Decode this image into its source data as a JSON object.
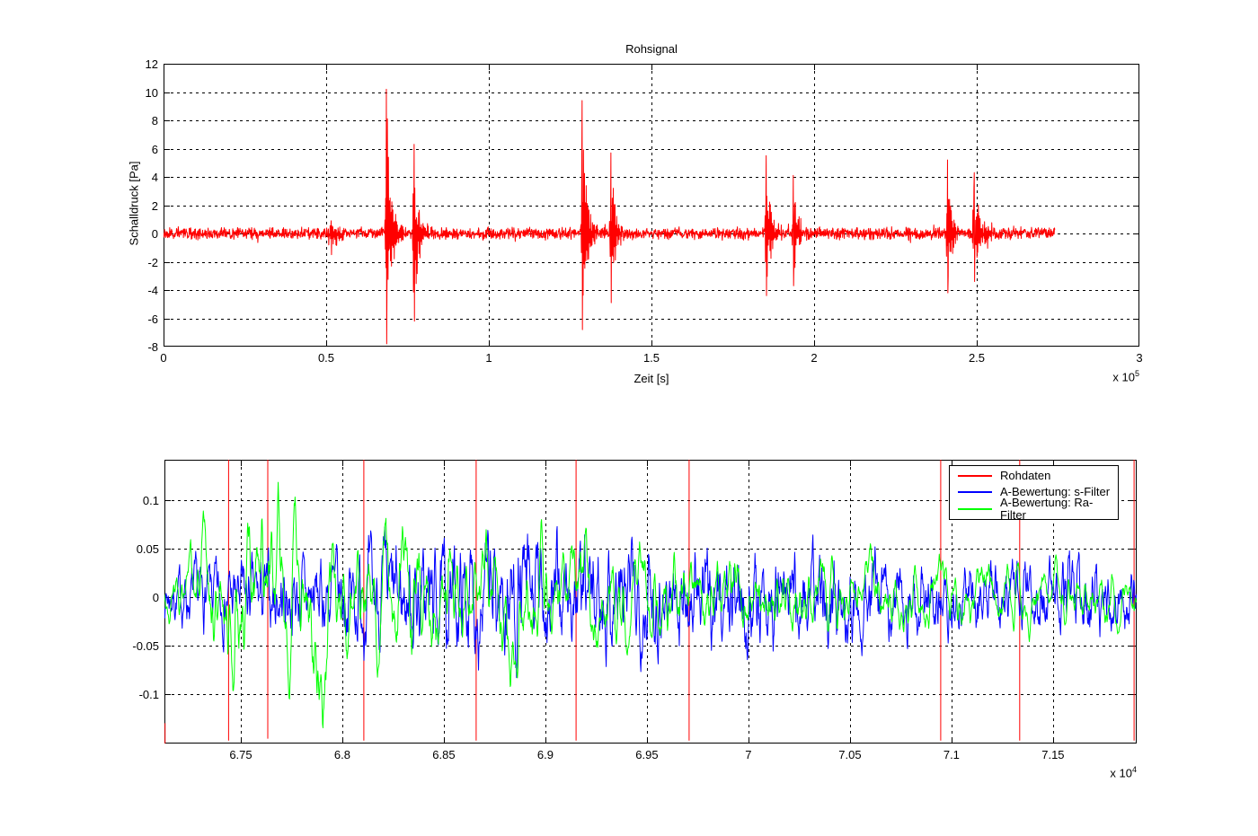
{
  "figure": {
    "background": "#ffffff",
    "font_color": "#000000"
  },
  "chart_data": [
    {
      "id": "rohsignal",
      "type": "line",
      "title": "Rohsignal",
      "xlabel": "Zeit [s]",
      "ylabel": "Schalldruck [Pa]",
      "x_scale_prefix": "x 10",
      "x_scale_power": "5",
      "xlim": [
        0,
        3
      ],
      "ylim": [
        -8,
        12
      ],
      "xticks": {
        "values": [
          0,
          0.5,
          1,
          1.5,
          2,
          2.5,
          3
        ],
        "labels": [
          "0",
          "0.5",
          "1",
          "1.5",
          "2",
          "2.5",
          "3"
        ]
      },
      "yticks": {
        "values": [
          -8,
          -6,
          -4,
          -2,
          0,
          2,
          4,
          6,
          8,
          10,
          12
        ],
        "labels": [
          "-8",
          "-6",
          "-4",
          "-2",
          "0",
          "2",
          "4",
          "6",
          "8",
          "10",
          "12"
        ]
      },
      "grid": true,
      "legend_position": "none",
      "series": [
        {
          "name": "Rohsignal",
          "color": "#ff0000",
          "generator": {
            "kind": "burst_noise",
            "seed": 13,
            "x_start": 0,
            "x_end": 2.74,
            "samples": 2600,
            "noise_peak": 0.5,
            "bursts": [
              {
                "center": 0.515,
                "peak": 0.9,
                "trough": -1.5,
                "rise": 0.012,
                "decay": 0.02
              },
              {
                "center": 0.685,
                "peak": 10.2,
                "trough": -7.8,
                "rise": 0.005,
                "decay": 0.016
              },
              {
                "center": 0.77,
                "peak": 6.3,
                "trough": -6.2,
                "rise": 0.005,
                "decay": 0.014
              },
              {
                "center": 1.287,
                "peak": 9.4,
                "trough": -6.8,
                "rise": 0.005,
                "decay": 0.016
              },
              {
                "center": 1.375,
                "peak": 5.7,
                "trough": -4.9,
                "rise": 0.005,
                "decay": 0.014
              },
              {
                "center": 1.853,
                "peak": 5.5,
                "trough": -4.4,
                "rise": 0.005,
                "decay": 0.013
              },
              {
                "center": 1.936,
                "peak": 4.1,
                "trough": -3.7,
                "rise": 0.005,
                "decay": 0.013
              },
              {
                "center": 2.41,
                "peak": 5.2,
                "trough": -4.2,
                "rise": 0.005,
                "decay": 0.013
              },
              {
                "center": 2.492,
                "peak": 4.3,
                "trough": -3.4,
                "rise": 0.007,
                "decay": 0.018
              }
            ]
          }
        }
      ]
    },
    {
      "id": "bewertung-vergleich",
      "type": "line",
      "title": "",
      "xlabel": "",
      "ylabel": "",
      "x_scale_prefix": "x 10",
      "x_scale_power": "4",
      "xlim": [
        6.7124,
        7.1912
      ],
      "ylim": [
        -0.151,
        0.142
      ],
      "xticks": {
        "values": [
          6.75,
          6.8,
          6.85,
          6.9,
          6.95,
          7,
          7.05,
          7.1,
          7.15
        ],
        "labels": [
          "6.75",
          "6.8",
          "6.85",
          "6.9",
          "6.95",
          "7",
          "7.05",
          "7.1",
          "7.15"
        ]
      },
      "yticks": {
        "values": [
          -0.1,
          -0.05,
          0,
          0.05,
          0.1
        ],
        "labels": [
          "-0.1",
          "-0.05",
          "0",
          "0.05",
          "0.1"
        ]
      },
      "grid": true,
      "legend_position": "top-right",
      "legend": [
        {
          "label": "Rohdaten",
          "color": "#ff0000"
        },
        {
          "label": "A-Bewertung: s-Filter",
          "color": "#0000ff"
        },
        {
          "label": "A-Bewertung: Ra-Filter",
          "color": "#00ff00"
        }
      ],
      "red_vertical_lines": [
        {
          "x": 6.7127,
          "y_bottom": -0.151,
          "y_top": -0.13
        },
        {
          "x": 6.744,
          "y_bottom": -0.148,
          "y_top": 0.142
        },
        {
          "x": 6.7633,
          "y_bottom": -0.146,
          "y_top": 0.142
        },
        {
          "x": 6.8106,
          "y_bottom": -0.148,
          "y_top": 0.142
        },
        {
          "x": 6.8659,
          "y_bottom": -0.148,
          "y_top": 0.142
        },
        {
          "x": 6.9151,
          "y_bottom": -0.148,
          "y_top": 0.142
        },
        {
          "x": 6.9708,
          "y_bottom": -0.148,
          "y_top": 0.142
        },
        {
          "x": 7.0947,
          "y_bottom": -0.148,
          "y_top": 0.142
        },
        {
          "x": 7.1336,
          "y_bottom": -0.148,
          "y_top": 0.142
        },
        {
          "x": 7.1899,
          "y_bottom": -0.148,
          "y_top": 0.142
        }
      ],
      "series": [
        {
          "name": "A-Bewertung: s-Filter",
          "color": "#0000ff",
          "generator": {
            "kind": "filtered_noise",
            "seed": 7,
            "x_start": 6.7124,
            "x_end": 7.1912,
            "samples": 2300,
            "lp1": 0.55,
            "lp2": 0.4,
            "scale": 0.105,
            "envelope": [
              [
                6.7124,
                0.35
              ],
              [
                6.73,
                0.5
              ],
              [
                6.76,
                0.6
              ],
              [
                6.79,
                0.65
              ],
              [
                6.82,
                0.8
              ],
              [
                6.85,
                0.75
              ],
              [
                6.88,
                1.0
              ],
              [
                6.91,
                0.8
              ],
              [
                6.94,
                0.85
              ],
              [
                6.97,
                0.7
              ],
              [
                7.0,
                0.8
              ],
              [
                7.03,
                0.75
              ],
              [
                7.06,
                0.6
              ],
              [
                7.09,
                0.55
              ],
              [
                7.12,
                0.5
              ],
              [
                7.15,
                0.55
              ],
              [
                7.1912,
                0.45
              ]
            ]
          }
        },
        {
          "name": "A-Bewertung: Ra-Filter",
          "color": "#00ff00",
          "generator": {
            "kind": "filtered_noise",
            "seed": 3,
            "x_start": 6.7124,
            "x_end": 7.1912,
            "samples": 2300,
            "lp1": 0.3,
            "lp2": 0.22,
            "scale": 0.115,
            "envelope": [
              [
                6.7124,
                0.45
              ],
              [
                6.725,
                0.6
              ],
              [
                6.74,
                1.0
              ],
              [
                6.755,
                1.25
              ],
              [
                6.77,
                1.15
              ],
              [
                6.79,
                1.25
              ],
              [
                6.81,
                1.0
              ],
              [
                6.835,
                1.2
              ],
              [
                6.86,
                0.9
              ],
              [
                6.89,
                0.85
              ],
              [
                6.92,
                0.8
              ],
              [
                6.95,
                0.75
              ],
              [
                6.98,
                0.7
              ],
              [
                7.01,
                0.65
              ],
              [
                7.04,
                0.6
              ],
              [
                7.07,
                0.55
              ],
              [
                7.1,
                0.5
              ],
              [
                7.13,
                0.45
              ],
              [
                7.16,
                0.4
              ],
              [
                7.1912,
                0.45
              ]
            ]
          }
        }
      ]
    }
  ]
}
